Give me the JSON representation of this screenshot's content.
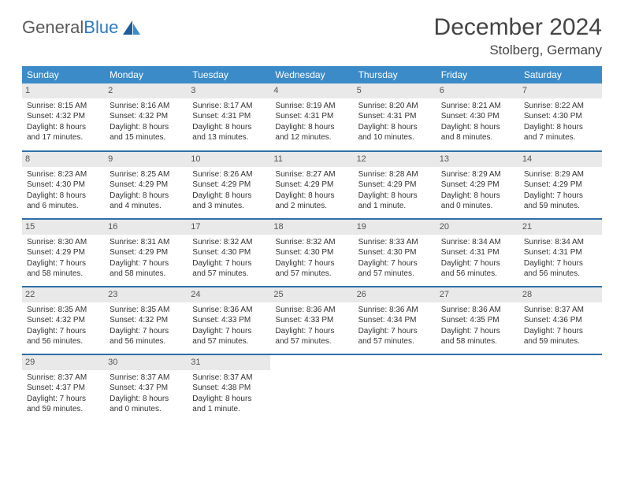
{
  "brand": {
    "name1": "General",
    "name2": "Blue"
  },
  "title": "December 2024",
  "location": "Stolberg, Germany",
  "colors": {
    "header_bg": "#3b8bc9",
    "row_divider": "#2f6fa8",
    "daynum_bg": "#e9e9e9",
    "logo_blue": "#2f7ac0",
    "text": "#333333"
  },
  "weekdays": [
    "Sunday",
    "Monday",
    "Tuesday",
    "Wednesday",
    "Thursday",
    "Friday",
    "Saturday"
  ],
  "weeks": [
    [
      {
        "n": "1",
        "sr": "8:15 AM",
        "ss": "4:32 PM",
        "dl": "8 hours and 17 minutes."
      },
      {
        "n": "2",
        "sr": "8:16 AM",
        "ss": "4:32 PM",
        "dl": "8 hours and 15 minutes."
      },
      {
        "n": "3",
        "sr": "8:17 AM",
        "ss": "4:31 PM",
        "dl": "8 hours and 13 minutes."
      },
      {
        "n": "4",
        "sr": "8:19 AM",
        "ss": "4:31 PM",
        "dl": "8 hours and 12 minutes."
      },
      {
        "n": "5",
        "sr": "8:20 AM",
        "ss": "4:31 PM",
        "dl": "8 hours and 10 minutes."
      },
      {
        "n": "6",
        "sr": "8:21 AM",
        "ss": "4:30 PM",
        "dl": "8 hours and 8 minutes."
      },
      {
        "n": "7",
        "sr": "8:22 AM",
        "ss": "4:30 PM",
        "dl": "8 hours and 7 minutes."
      }
    ],
    [
      {
        "n": "8",
        "sr": "8:23 AM",
        "ss": "4:30 PM",
        "dl": "8 hours and 6 minutes."
      },
      {
        "n": "9",
        "sr": "8:25 AM",
        "ss": "4:29 PM",
        "dl": "8 hours and 4 minutes."
      },
      {
        "n": "10",
        "sr": "8:26 AM",
        "ss": "4:29 PM",
        "dl": "8 hours and 3 minutes."
      },
      {
        "n": "11",
        "sr": "8:27 AM",
        "ss": "4:29 PM",
        "dl": "8 hours and 2 minutes."
      },
      {
        "n": "12",
        "sr": "8:28 AM",
        "ss": "4:29 PM",
        "dl": "8 hours and 1 minute."
      },
      {
        "n": "13",
        "sr": "8:29 AM",
        "ss": "4:29 PM",
        "dl": "8 hours and 0 minutes."
      },
      {
        "n": "14",
        "sr": "8:29 AM",
        "ss": "4:29 PM",
        "dl": "7 hours and 59 minutes."
      }
    ],
    [
      {
        "n": "15",
        "sr": "8:30 AM",
        "ss": "4:29 PM",
        "dl": "7 hours and 58 minutes."
      },
      {
        "n": "16",
        "sr": "8:31 AM",
        "ss": "4:29 PM",
        "dl": "7 hours and 58 minutes."
      },
      {
        "n": "17",
        "sr": "8:32 AM",
        "ss": "4:30 PM",
        "dl": "7 hours and 57 minutes."
      },
      {
        "n": "18",
        "sr": "8:32 AM",
        "ss": "4:30 PM",
        "dl": "7 hours and 57 minutes."
      },
      {
        "n": "19",
        "sr": "8:33 AM",
        "ss": "4:30 PM",
        "dl": "7 hours and 57 minutes."
      },
      {
        "n": "20",
        "sr": "8:34 AM",
        "ss": "4:31 PM",
        "dl": "7 hours and 56 minutes."
      },
      {
        "n": "21",
        "sr": "8:34 AM",
        "ss": "4:31 PM",
        "dl": "7 hours and 56 minutes."
      }
    ],
    [
      {
        "n": "22",
        "sr": "8:35 AM",
        "ss": "4:32 PM",
        "dl": "7 hours and 56 minutes."
      },
      {
        "n": "23",
        "sr": "8:35 AM",
        "ss": "4:32 PM",
        "dl": "7 hours and 56 minutes."
      },
      {
        "n": "24",
        "sr": "8:36 AM",
        "ss": "4:33 PM",
        "dl": "7 hours and 57 minutes."
      },
      {
        "n": "25",
        "sr": "8:36 AM",
        "ss": "4:33 PM",
        "dl": "7 hours and 57 minutes."
      },
      {
        "n": "26",
        "sr": "8:36 AM",
        "ss": "4:34 PM",
        "dl": "7 hours and 57 minutes."
      },
      {
        "n": "27",
        "sr": "8:36 AM",
        "ss": "4:35 PM",
        "dl": "7 hours and 58 minutes."
      },
      {
        "n": "28",
        "sr": "8:37 AM",
        "ss": "4:36 PM",
        "dl": "7 hours and 59 minutes."
      }
    ],
    [
      {
        "n": "29",
        "sr": "8:37 AM",
        "ss": "4:37 PM",
        "dl": "7 hours and 59 minutes."
      },
      {
        "n": "30",
        "sr": "8:37 AM",
        "ss": "4:37 PM",
        "dl": "8 hours and 0 minutes."
      },
      {
        "n": "31",
        "sr": "8:37 AM",
        "ss": "4:38 PM",
        "dl": "8 hours and 1 minute."
      },
      null,
      null,
      null,
      null
    ]
  ],
  "labels": {
    "sunrise": "Sunrise:",
    "sunset": "Sunset:",
    "daylight": "Daylight:"
  }
}
